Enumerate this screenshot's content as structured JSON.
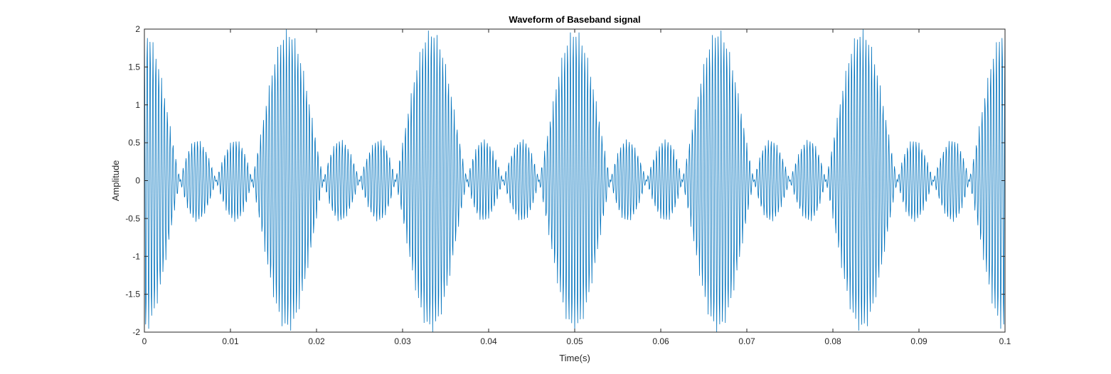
{
  "chart_data": {
    "type": "line",
    "title": "Waveform of Baseband signal",
    "xlabel": "Time(s)",
    "ylabel": "Amplitude",
    "xlim": [
      0,
      0.1
    ],
    "ylim": [
      -2,
      2
    ],
    "x_ticks": [
      0,
      0.01,
      0.02,
      0.03,
      0.04,
      0.05,
      0.06,
      0.07,
      0.08,
      0.09,
      0.1
    ],
    "x_tick_labels": [
      "0",
      "0.01",
      "0.02",
      "0.03",
      "0.04",
      "0.05",
      "0.06",
      "0.07",
      "0.08",
      "0.09",
      "0.1"
    ],
    "y_ticks": [
      -2,
      -1.5,
      -1,
      -0.5,
      0,
      0.5,
      1,
      1.5,
      2
    ],
    "y_tick_labels": [
      "-2",
      "-1.5",
      "-1",
      "-0.5",
      "0",
      "0.5",
      "1",
      "1.5",
      "2"
    ],
    "grid": false,
    "series": [
      {
        "color": "#0072BD",
        "signal": {
          "kind": "sum_of_cosines",
          "frequencies_hz": [
            30,
            90
          ],
          "amplitudes": [
            1,
            1
          ],
          "carrier_hz": 3000,
          "sample_rate_hz": 20000,
          "t_start": 0,
          "t_end": 0.1
        }
      }
    ]
  }
}
